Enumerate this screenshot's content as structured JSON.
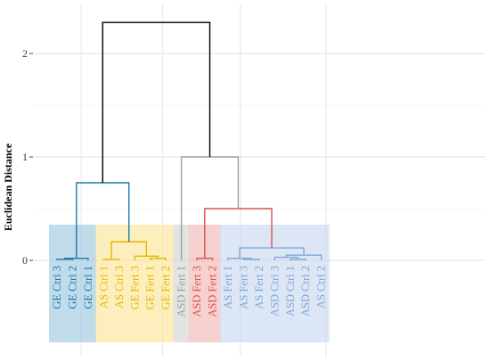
{
  "chart_data": {
    "type": "dendrogram",
    "ylabel": "Euclidean Distance",
    "ylim": [
      -0.8,
      2.5
    ],
    "yticks": [
      0,
      1,
      2
    ],
    "ytick_labels": [
      "0 -",
      "1 -",
      "2 -"
    ],
    "grid": true,
    "leaves": [
      {
        "label": "GE Ctrl 3",
        "cluster": "GE"
      },
      {
        "label": "GE Ctrl 2",
        "cluster": "GE"
      },
      {
        "label": "GE Ctrl 1",
        "cluster": "GE"
      },
      {
        "label": "AS Ctrl 1",
        "cluster": "ASYellow"
      },
      {
        "label": "AS Ctrl 3",
        "cluster": "ASYellow"
      },
      {
        "label": "GE Fert 3",
        "cluster": "ASYellow"
      },
      {
        "label": "GE Fert 1",
        "cluster": "ASYellow"
      },
      {
        "label": "GE Fert 2",
        "cluster": "ASYellow"
      },
      {
        "label": "ASD Fert 1",
        "cluster": "ASDGray"
      },
      {
        "label": "ASD Fert 3",
        "cluster": "ASDRed"
      },
      {
        "label": "ASD Fert 2",
        "cluster": "ASDRed"
      },
      {
        "label": "AS Fert 1",
        "cluster": "LightBlue"
      },
      {
        "label": "AS Fert 3",
        "cluster": "LightBlue"
      },
      {
        "label": "AS Fert 2",
        "cluster": "LightBlue"
      },
      {
        "label": "ASD Ctrl 3",
        "cluster": "LightBlue"
      },
      {
        "label": "ASD Ctrl 1",
        "cluster": "LightBlue"
      },
      {
        "label": "ASD Ctrl 2",
        "cluster": "LightBlue"
      },
      {
        "label": "AS Ctrl 2",
        "cluster": "LightBlue"
      }
    ],
    "clusters": {
      "GE": {
        "color": "#1f78b4",
        "fill": "#9ecae1",
        "first": 0,
        "last": 2
      },
      "ASYellow": {
        "color": "#e6b800",
        "fill": "#fbe79a",
        "first": 3,
        "last": 7
      },
      "ASDGray": {
        "color": "#9e9e9e",
        "fill": "#d4d4d4",
        "first": 8,
        "last": 8
      },
      "ASDRed": {
        "color": "#d9534f",
        "fill": "#f2b8b6",
        "first": 9,
        "last": 10
      },
      "LightBlue": {
        "color": "#7ea6d9",
        "fill": "#c9d8f0",
        "first": 11,
        "last": 17
      }
    },
    "merges": [
      {
        "a": "L0",
        "b": "L1",
        "h": 0.01,
        "color": "#1f78b4"
      },
      {
        "a": "M0",
        "b": "L2",
        "h": 0.02,
        "color": "#1f78b4"
      },
      {
        "a": "L6",
        "b": "L7",
        "h": 0.02,
        "color": "#e6b800"
      },
      {
        "a": "L5",
        "b": "M2",
        "h": 0.04,
        "color": "#e6b800"
      },
      {
        "a": "L3",
        "b": "L4",
        "h": 0.01,
        "color": "#e6b800"
      },
      {
        "a": "M4",
        "b": "M3",
        "h": 0.18,
        "color": "#e6b800"
      },
      {
        "a": "M1",
        "b": "M5",
        "h": 0.75,
        "color": "#1f78b4"
      },
      {
        "a": "L9",
        "b": "L10",
        "h": 0.02,
        "color": "#d9534f"
      },
      {
        "a": "L12",
        "b": "L13",
        "h": 0.01,
        "color": "#7ea6d9"
      },
      {
        "a": "L11",
        "b": "M8",
        "h": 0.02,
        "color": "#7ea6d9"
      },
      {
        "a": "L15",
        "b": "L16",
        "h": 0.01,
        "color": "#7ea6d9"
      },
      {
        "a": "L14",
        "b": "M10",
        "h": 0.03,
        "color": "#7ea6d9"
      },
      {
        "a": "M11",
        "b": "L17",
        "h": 0.05,
        "color": "#7ea6d9"
      },
      {
        "a": "M9",
        "b": "M12",
        "h": 0.12,
        "color": "#7ea6d9"
      },
      {
        "a": "M7",
        "b": "M13",
        "h": 0.5,
        "color": "#d9534f"
      },
      {
        "a": "L8",
        "b": "M14",
        "h": 1.0,
        "color": "#9e9e9e"
      },
      {
        "a": "M6",
        "b": "M15",
        "h": 2.3,
        "color": "#000000"
      }
    ]
  }
}
